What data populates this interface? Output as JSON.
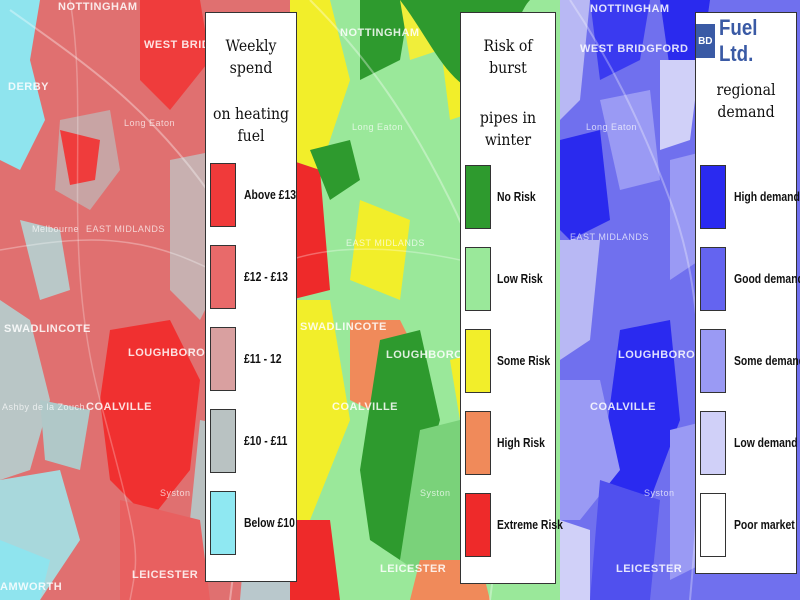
{
  "map_places": {
    "derby": "DERBY",
    "nottingham": "NOTTINGHAM",
    "west_bridgford": "WEST BRIDGFORD",
    "long_eaton": "Long Eaton",
    "east_midlands": "EAST MIDLANDS",
    "melbourne": "Melbourne",
    "swadlincote": "SWADLINCOTE",
    "loughborough": "LOUGHBOROUGH",
    "ashby": "Ashby de la Zouch",
    "coalville": "COALVILLE",
    "syston": "Syston",
    "leicester": "LEICESTER",
    "tamworth": "AMWORTH"
  },
  "legends": [
    {
      "id": "heating",
      "title_lines": [
        "Weekly spend",
        "on heating fuel"
      ],
      "items": [
        {
          "label": "Above £13",
          "color": "#f03a3a"
        },
        {
          "label": "£12 - £13",
          "color": "#e86a6a"
        },
        {
          "label": "£11 - 12",
          "color": "#d9a0a0"
        },
        {
          "label": "£10 - £11",
          "color": "#b9c2c2"
        },
        {
          "label": "Below £10",
          "color": "#8fe8f2"
        }
      ]
    },
    {
      "id": "pipes",
      "title_lines": [
        "Risk of burst",
        "pipes in winter"
      ],
      "items": [
        {
          "label": "No Risk",
          "color": "#2e9a2e"
        },
        {
          "label": "Low Risk",
          "color": "#9ae89a"
        },
        {
          "label": "Some Risk",
          "color": "#f2ee2a"
        },
        {
          "label": "High Risk",
          "color": "#f08a5a"
        },
        {
          "label": "Extreme Risk",
          "color": "#ee2a2a"
        }
      ]
    },
    {
      "id": "demand",
      "brand_badge": "BD",
      "brand_name": "Fuel Ltd.",
      "title_lines": [
        "regional demand"
      ],
      "items": [
        {
          "label": "High demand",
          "color": "#2a2af0"
        },
        {
          "label": "Good demand",
          "color": "#6464f0"
        },
        {
          "label": "Some demand",
          "color": "#9a9af4"
        },
        {
          "label": "Low demand",
          "color": "#d0d0f8"
        },
        {
          "label": "Poor market",
          "color": "#ffffff"
        }
      ]
    }
  ]
}
